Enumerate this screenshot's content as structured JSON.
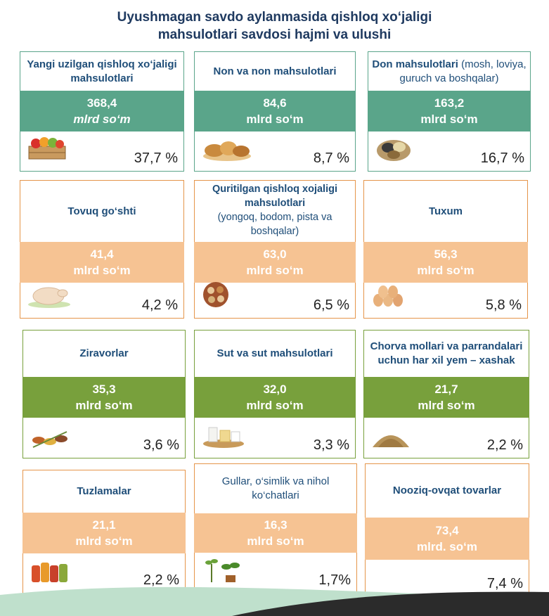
{
  "title_line1": "Uyushmagan savdo aylanmasida qishloq xo‘jaligi",
  "title_line2": "mahsulotlari savdosi hajmi va ulushi",
  "cards": [
    {
      "title": "Yangi uzilgan qishloq xo‘jaligi mahsulotlari",
      "sub": "",
      "value": "368,4",
      "unit": "mlrd so‘m",
      "percent": "37,7 %",
      "icon": "fruit-crate-icon"
    },
    {
      "title": "Non va non mahsulotlari",
      "sub": "",
      "value": "84,6",
      "unit": "mlrd so‘m",
      "percent": "8,7 %",
      "icon": "bread-icon"
    },
    {
      "title": "Don mahsulotlari",
      "sub": "(mosh, loviya, guruch va boshqalar)",
      "value": "163,2",
      "unit": "mlrd so‘m",
      "percent": "16,7 %",
      "icon": "grain-sacks-icon"
    },
    {
      "title": "Tovuq go‘shti",
      "sub": "",
      "value": "41,4",
      "unit": "mlrd so‘m",
      "percent": "4,2 %",
      "icon": "chicken-icon"
    },
    {
      "title": "Quritilgan qishloq xojaligi mahsulotlari",
      "sub": "(yongoq, bodom, pista va boshqalar)",
      "value": "63,0",
      "unit": "mlrd so‘m",
      "percent": "6,5 %",
      "icon": "nuts-icon"
    },
    {
      "title": "Tuxum",
      "sub": "",
      "value": "56,3",
      "unit": "mlrd so‘m",
      "percent": "5,8 %",
      "icon": "eggs-icon"
    },
    {
      "title": "Ziravorlar",
      "sub": "",
      "value": "35,3",
      "unit": "mlrd so‘m",
      "percent": "3,6 %",
      "icon": "spices-icon"
    },
    {
      "title": "Sut va sut mahsulotlari",
      "sub": "",
      "value": "32,0",
      "unit": "mlrd so‘m",
      "percent": "3,3 %",
      "icon": "dairy-icon"
    },
    {
      "title": "Chorva mollari va parrandalari uchun har xil yem – xashak",
      "sub": "",
      "value": "21,7",
      "unit": "mlrd so‘m",
      "percent": "2,2 %",
      "icon": "feed-icon"
    },
    {
      "title": "Tuzlamalar",
      "sub": "",
      "value": "21,1",
      "unit": "mlrd so‘m",
      "percent": "2,2 %",
      "icon": "pickles-icon"
    },
    {
      "title": "Gullar, o‘simlik va nihol ko‘chatlari",
      "sub": "",
      "value": "16,3",
      "unit": "mlrd so‘m",
      "percent": "1,7%",
      "icon": "seedlings-icon"
    },
    {
      "title": "Nooziq-ovqat tovarlar",
      "sub": "",
      "value": "73,4",
      "unit": "mlrd. so‘m",
      "percent": "7,4 %",
      "icon": ""
    }
  ]
}
